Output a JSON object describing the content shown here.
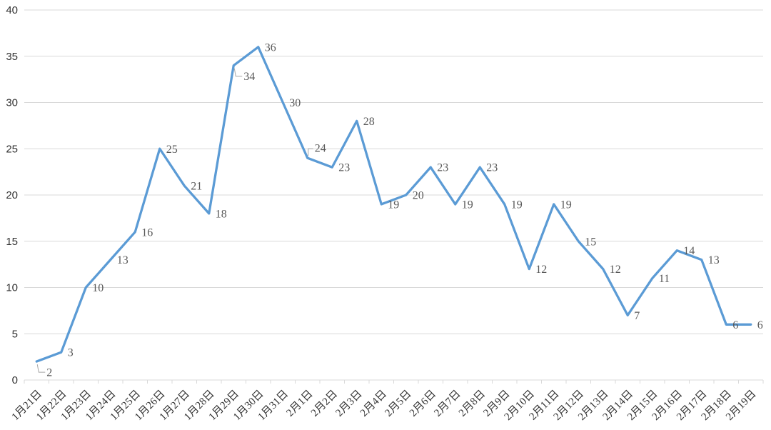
{
  "chart_data": {
    "type": "line",
    "title": "",
    "xlabel": "",
    "ylabel": "",
    "categories": [
      "1月21日",
      "1月22日",
      "1月23日",
      "1月24日",
      "1月25日",
      "1月26日",
      "1月27日",
      "1月28日",
      "1月29日",
      "1月30日",
      "1月31日",
      "2月1日",
      "2月2日",
      "2月3日",
      "2月4日",
      "2月5日",
      "2月6日",
      "2月7日",
      "2月8日",
      "2月9日",
      "2月10日",
      "2月11日",
      "2月12日",
      "2月13日",
      "2月14日",
      "2月15日",
      "2月16日",
      "2月17日",
      "2月18日",
      "2月19日"
    ],
    "series": [
      {
        "name": "",
        "values": [
          2,
          3,
          10,
          13,
          16,
          25,
          21,
          18,
          34,
          36,
          30,
          24,
          23,
          28,
          19,
          20,
          23,
          19,
          23,
          19,
          12,
          19,
          15,
          12,
          7,
          11,
          14,
          13,
          6,
          6
        ]
      }
    ],
    "ylim": [
      0,
      40
    ],
    "y_ticks": [
      0,
      5,
      10,
      15,
      20,
      25,
      30,
      35,
      40
    ],
    "grid": true,
    "legend": "none",
    "data_labels_visible": true,
    "x_label_rotation_deg": 45,
    "leader_labels": [
      {
        "index": 0,
        "placement": "below-right"
      },
      {
        "index": 8,
        "placement": "below-right"
      },
      {
        "index": 11,
        "placement": "above-right"
      }
    ],
    "colors": {
      "line": "#5B9BD5",
      "gridline": "#D9D9D9",
      "axis_line": "#D9D9D9",
      "tick": "#D9D9D9",
      "axis_label": "#333333",
      "data_label": "#595959",
      "leader_line": "#A6A6A6",
      "background": "#FFFFFF"
    }
  }
}
